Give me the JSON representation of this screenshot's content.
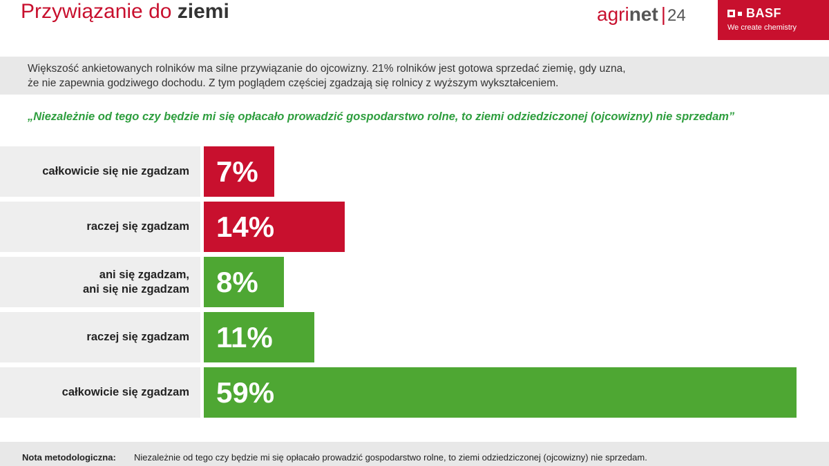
{
  "header": {
    "title_regular": "Przywiązanie do",
    "title_bold": "ziemi",
    "brand_agri": "agri",
    "brand_net": "net",
    "brand_sep": "|",
    "brand_num": "24",
    "basf_name": "BASF",
    "basf_tagline": "We create chemistry"
  },
  "description": {
    "line1": "Większość ankietowanych rolników ma silne przywiązanie do ojcowizny. 21% rolników jest gotowa sprzedać ziemię, gdy uzna,",
    "line2": "że nie zapewnia godziwego dochodu. Z tym poglądem częściej zgadzają się rolnicy z wyższym wykształceniem."
  },
  "chart_data": {
    "type": "bar",
    "orientation": "horizontal",
    "title": "„Niezależnie od tego czy będzie mi się opłacało prowadzić gospodarstwo rolne, to ziemi odziedziczonej (ojcowizny) nie sprzedam”",
    "categories": [
      "całkowicie się nie zgadzam",
      "raczej się zgadzam",
      "ani się zgadzam,\nani się nie zgadzam",
      "raczej się zgadzam",
      "całkowicie się zgadzam"
    ],
    "values": [
      7,
      14,
      8,
      11,
      59
    ],
    "value_labels": [
      "7%",
      "14%",
      "8%",
      "11%",
      "59%"
    ],
    "bar_colors": [
      "#c8102e",
      "#c8102e",
      "#4ea733",
      "#4ea733",
      "#4ea733"
    ],
    "xlim": [
      0,
      60
    ],
    "grid": false
  },
  "footer": {
    "label": "Nota metodologiczna:",
    "text": "Niezależnie od tego czy będzie mi się opłacało prowadzić gospodarstwo rolne, to ziemi odziedziczonej (ojcowizny) nie sprzedam."
  }
}
